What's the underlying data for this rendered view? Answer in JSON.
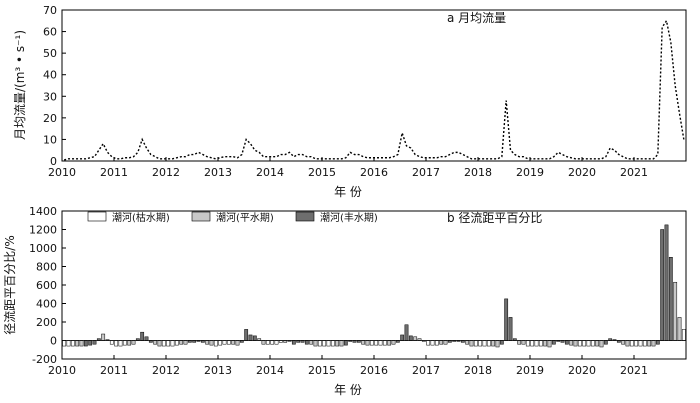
{
  "chart_data": [
    {
      "type": "line",
      "title": "a 月均流量",
      "xlabel": "年 份",
      "ylabel": "月均流量/(m³ • s⁻¹)",
      "xlim": [
        2010,
        2022
      ],
      "ylim": [
        0,
        70
      ],
      "x_ticks": [
        "2010",
        "2011",
        "2012",
        "2013",
        "2014",
        "2015",
        "2016",
        "2017",
        "2018",
        "2019",
        "2020",
        "2021"
      ],
      "y_ticks": [
        "0",
        "10",
        "20",
        "30",
        "40",
        "50",
        "60",
        "70"
      ],
      "line_style": "dotted",
      "series": [
        {
          "values": [
            0.5,
            1,
            1,
            1,
            1,
            1,
            1.5,
            2,
            5,
            8,
            4,
            2,
            1,
            1,
            1.5,
            1.5,
            2,
            4,
            10,
            6,
            3,
            2,
            1,
            1,
            1,
            1,
            1.5,
            2,
            2,
            3,
            3,
            4,
            3,
            2,
            1.5,
            1,
            1.5,
            2,
            2,
            2,
            1.5,
            3,
            10,
            8,
            5,
            4,
            2,
            2,
            2,
            2,
            3,
            3,
            4,
            2,
            3,
            3,
            2,
            2,
            1,
            1,
            1,
            1,
            1,
            1,
            1,
            1.5,
            4,
            3,
            3,
            2,
            1.5,
            1.5,
            1.5,
            1.5,
            1.5,
            1.5,
            2,
            3,
            13,
            7,
            6,
            3,
            2,
            1.5,
            1.5,
            1.5,
            1.5,
            2,
            2,
            3,
            4,
            4,
            3,
            2,
            1,
            1,
            1,
            1,
            1,
            1,
            1,
            2,
            28,
            5,
            3,
            2,
            2,
            1,
            1,
            1,
            1,
            1,
            1,
            2,
            4,
            3,
            2,
            1.5,
            1,
            1,
            1,
            1,
            1,
            1,
            1,
            2,
            6,
            5,
            3,
            2,
            1,
            1,
            1,
            1,
            1,
            1,
            1,
            3,
            62,
            65,
            55,
            35,
            22,
            10
          ]
        }
      ]
    },
    {
      "type": "bar",
      "title": "b 径流距平百分比",
      "xlabel": "年 份",
      "ylabel": "径流距平百分比/%",
      "xlim": [
        2010,
        2022
      ],
      "ylim": [
        -200,
        1400
      ],
      "x_ticks": [
        "2010",
        "2011",
        "2012",
        "2013",
        "2014",
        "2015",
        "2016",
        "2017",
        "2018",
        "2019",
        "2020",
        "2021"
      ],
      "y_ticks": [
        "-200",
        "0",
        "200",
        "400",
        "600",
        "800",
        "1000",
        "1200",
        "1400"
      ],
      "legend": [
        {
          "label": "潮河(枯水期)",
          "fill": "#ffffff"
        },
        {
          "label": "潮河(平水期)",
          "fill": "#c8c8c8"
        },
        {
          "label": "潮河(丰水期)",
          "fill": "#6e6e6e"
        }
      ],
      "legend_position": "top-left",
      "series": [
        {
          "values": [
            -60,
            -60,
            -60,
            -60,
            -60,
            -60,
            -50,
            -40,
            20,
            70,
            10,
            -40,
            -60,
            -60,
            -50,
            -50,
            -40,
            20,
            90,
            40,
            -20,
            -40,
            -60,
            -60,
            -60,
            -60,
            -50,
            -40,
            -40,
            -20,
            -20,
            -10,
            -20,
            -40,
            -50,
            -60,
            -50,
            -40,
            -40,
            -40,
            -50,
            -20,
            120,
            60,
            50,
            20,
            -40,
            -40,
            -40,
            -40,
            -20,
            -20,
            -10,
            -40,
            -20,
            -20,
            -40,
            -40,
            -60,
            -60,
            -60,
            -60,
            -60,
            -60,
            -60,
            -50,
            -10,
            -20,
            -20,
            -40,
            -50,
            -50,
            -50,
            -50,
            -50,
            -50,
            -40,
            -20,
            60,
            170,
            50,
            40,
            20,
            -10,
            -50,
            -50,
            -50,
            -40,
            -40,
            -20,
            -10,
            -10,
            -20,
            -40,
            -60,
            -60,
            -60,
            -60,
            -60,
            -60,
            -70,
            -40,
            450,
            250,
            20,
            -40,
            -40,
            -60,
            -60,
            -60,
            -60,
            -60,
            -70,
            -40,
            -10,
            -20,
            -40,
            -50,
            -60,
            -60,
            -60,
            -60,
            -60,
            -60,
            -70,
            -40,
            20,
            10,
            -20,
            -40,
            -60,
            -60,
            -60,
            -60,
            -60,
            -60,
            -60,
            -40,
            1200,
            1250,
            900,
            630,
            250,
            120
          ]
        }
      ]
    }
  ]
}
